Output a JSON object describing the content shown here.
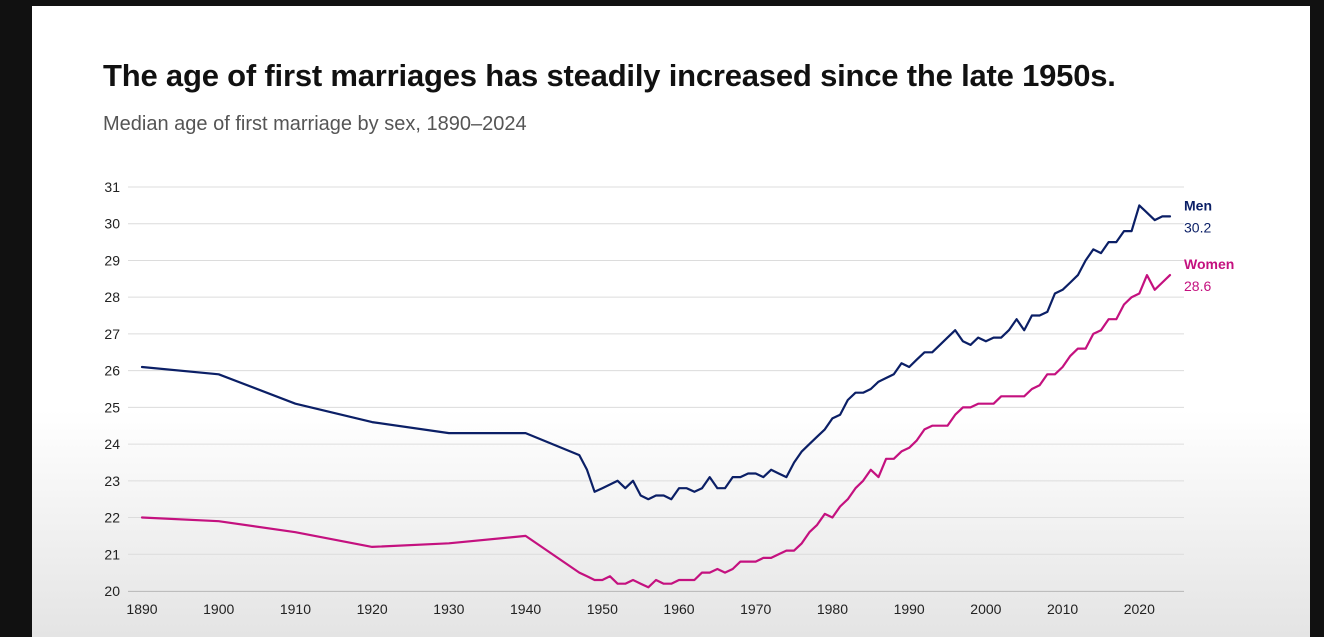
{
  "header": {
    "title": "The age of first marriages has steadily increased since the late 1950s.",
    "subtitle": "Median age of first marriage by sex, 1890–2024"
  },
  "chart_data": {
    "type": "line",
    "title": "The age of first marriages has steadily increased since the late 1950s.",
    "subtitle": "Median age of first marriage by sex, 1890–2024",
    "xlabel": "",
    "ylabel": "",
    "xlim": [
      1890,
      2024
    ],
    "ylim": [
      20,
      31
    ],
    "x_ticks": [
      1890,
      1900,
      1910,
      1920,
      1930,
      1940,
      1950,
      1960,
      1970,
      1980,
      1990,
      2000,
      2010,
      2020
    ],
    "y_ticks": [
      20,
      21,
      22,
      23,
      24,
      25,
      26,
      27,
      28,
      29,
      30,
      31
    ],
    "grid": true,
    "legend": "direct labels at line ends (right)",
    "series": [
      {
        "name": "Men",
        "end_label": "30.2",
        "color": "#0b1f66",
        "points": [
          [
            1890,
            26.1
          ],
          [
            1900,
            25.9
          ],
          [
            1910,
            25.1
          ],
          [
            1920,
            24.6
          ],
          [
            1930,
            24.3
          ],
          [
            1940,
            24.3
          ],
          [
            1947,
            23.7
          ],
          [
            1948,
            23.3
          ],
          [
            1949,
            22.7
          ],
          [
            1950,
            22.8
          ],
          [
            1951,
            22.9
          ],
          [
            1952,
            23.0
          ],
          [
            1953,
            22.8
          ],
          [
            1954,
            23.0
          ],
          [
            1955,
            22.6
          ],
          [
            1956,
            22.5
          ],
          [
            1957,
            22.6
          ],
          [
            1958,
            22.6
          ],
          [
            1959,
            22.5
          ],
          [
            1960,
            22.8
          ],
          [
            1961,
            22.8
          ],
          [
            1962,
            22.7
          ],
          [
            1963,
            22.8
          ],
          [
            1964,
            23.1
          ],
          [
            1965,
            22.8
          ],
          [
            1966,
            22.8
          ],
          [
            1967,
            23.1
          ],
          [
            1968,
            23.1
          ],
          [
            1969,
            23.2
          ],
          [
            1970,
            23.2
          ],
          [
            1971,
            23.1
          ],
          [
            1972,
            23.3
          ],
          [
            1973,
            23.2
          ],
          [
            1974,
            23.1
          ],
          [
            1975,
            23.5
          ],
          [
            1976,
            23.8
          ],
          [
            1977,
            24.0
          ],
          [
            1978,
            24.2
          ],
          [
            1979,
            24.4
          ],
          [
            1980,
            24.7
          ],
          [
            1981,
            24.8
          ],
          [
            1982,
            25.2
          ],
          [
            1983,
            25.4
          ],
          [
            1984,
            25.4
          ],
          [
            1985,
            25.5
          ],
          [
            1986,
            25.7
          ],
          [
            1987,
            25.8
          ],
          [
            1988,
            25.9
          ],
          [
            1989,
            26.2
          ],
          [
            1990,
            26.1
          ],
          [
            1991,
            26.3
          ],
          [
            1992,
            26.5
          ],
          [
            1993,
            26.5
          ],
          [
            1994,
            26.7
          ],
          [
            1995,
            26.9
          ],
          [
            1996,
            27.1
          ],
          [
            1997,
            26.8
          ],
          [
            1998,
            26.7
          ],
          [
            1999,
            26.9
          ],
          [
            2000,
            26.8
          ],
          [
            2001,
            26.9
          ],
          [
            2002,
            26.9
          ],
          [
            2003,
            27.1
          ],
          [
            2004,
            27.4
          ],
          [
            2005,
            27.1
          ],
          [
            2006,
            27.5
          ],
          [
            2007,
            27.5
          ],
          [
            2008,
            27.6
          ],
          [
            2009,
            28.1
          ],
          [
            2010,
            28.2
          ],
          [
            2011,
            28.4
          ],
          [
            2012,
            28.6
          ],
          [
            2013,
            29.0
          ],
          [
            2014,
            29.3
          ],
          [
            2015,
            29.2
          ],
          [
            2016,
            29.5
          ],
          [
            2017,
            29.5
          ],
          [
            2018,
            29.8
          ],
          [
            2019,
            29.8
          ],
          [
            2020,
            30.5
          ],
          [
            2021,
            30.3
          ],
          [
            2022,
            30.1
          ],
          [
            2023,
            30.2
          ],
          [
            2024,
            30.2
          ]
        ]
      },
      {
        "name": "Women",
        "end_label": "28.6",
        "color": "#c4117f",
        "points": [
          [
            1890,
            22.0
          ],
          [
            1900,
            21.9
          ],
          [
            1910,
            21.6
          ],
          [
            1920,
            21.2
          ],
          [
            1930,
            21.3
          ],
          [
            1940,
            21.5
          ],
          [
            1947,
            20.5
          ],
          [
            1948,
            20.4
          ],
          [
            1949,
            20.3
          ],
          [
            1950,
            20.3
          ],
          [
            1951,
            20.4
          ],
          [
            1952,
            20.2
          ],
          [
            1953,
            20.2
          ],
          [
            1954,
            20.3
          ],
          [
            1955,
            20.2
          ],
          [
            1956,
            20.1
          ],
          [
            1957,
            20.3
          ],
          [
            1958,
            20.2
          ],
          [
            1959,
            20.2
          ],
          [
            1960,
            20.3
          ],
          [
            1961,
            20.3
          ],
          [
            1962,
            20.3
          ],
          [
            1963,
            20.5
          ],
          [
            1964,
            20.5
          ],
          [
            1965,
            20.6
          ],
          [
            1966,
            20.5
          ],
          [
            1967,
            20.6
          ],
          [
            1968,
            20.8
          ],
          [
            1969,
            20.8
          ],
          [
            1970,
            20.8
          ],
          [
            1971,
            20.9
          ],
          [
            1972,
            20.9
          ],
          [
            1973,
            21.0
          ],
          [
            1974,
            21.1
          ],
          [
            1975,
            21.1
          ],
          [
            1976,
            21.3
          ],
          [
            1977,
            21.6
          ],
          [
            1978,
            21.8
          ],
          [
            1979,
            22.1
          ],
          [
            1980,
            22.0
          ],
          [
            1981,
            22.3
          ],
          [
            1982,
            22.5
          ],
          [
            1983,
            22.8
          ],
          [
            1984,
            23.0
          ],
          [
            1985,
            23.3
          ],
          [
            1986,
            23.1
          ],
          [
            1987,
            23.6
          ],
          [
            1988,
            23.6
          ],
          [
            1989,
            23.8
          ],
          [
            1990,
            23.9
          ],
          [
            1991,
            24.1
          ],
          [
            1992,
            24.4
          ],
          [
            1993,
            24.5
          ],
          [
            1994,
            24.5
          ],
          [
            1995,
            24.5
          ],
          [
            1996,
            24.8
          ],
          [
            1997,
            25.0
          ],
          [
            1998,
            25.0
          ],
          [
            1999,
            25.1
          ],
          [
            2000,
            25.1
          ],
          [
            2001,
            25.1
          ],
          [
            2002,
            25.3
          ],
          [
            2003,
            25.3
          ],
          [
            2004,
            25.3
          ],
          [
            2005,
            25.3
          ],
          [
            2006,
            25.5
          ],
          [
            2007,
            25.6
          ],
          [
            2008,
            25.9
          ],
          [
            2009,
            25.9
          ],
          [
            2010,
            26.1
          ],
          [
            2011,
            26.4
          ],
          [
            2012,
            26.6
          ],
          [
            2013,
            26.6
          ],
          [
            2014,
            27.0
          ],
          [
            2015,
            27.1
          ],
          [
            2016,
            27.4
          ],
          [
            2017,
            27.4
          ],
          [
            2018,
            27.8
          ],
          [
            2019,
            28.0
          ],
          [
            2020,
            28.1
          ],
          [
            2021,
            28.6
          ],
          [
            2022,
            28.2
          ],
          [
            2023,
            28.4
          ],
          [
            2024,
            28.6
          ]
        ]
      }
    ]
  }
}
